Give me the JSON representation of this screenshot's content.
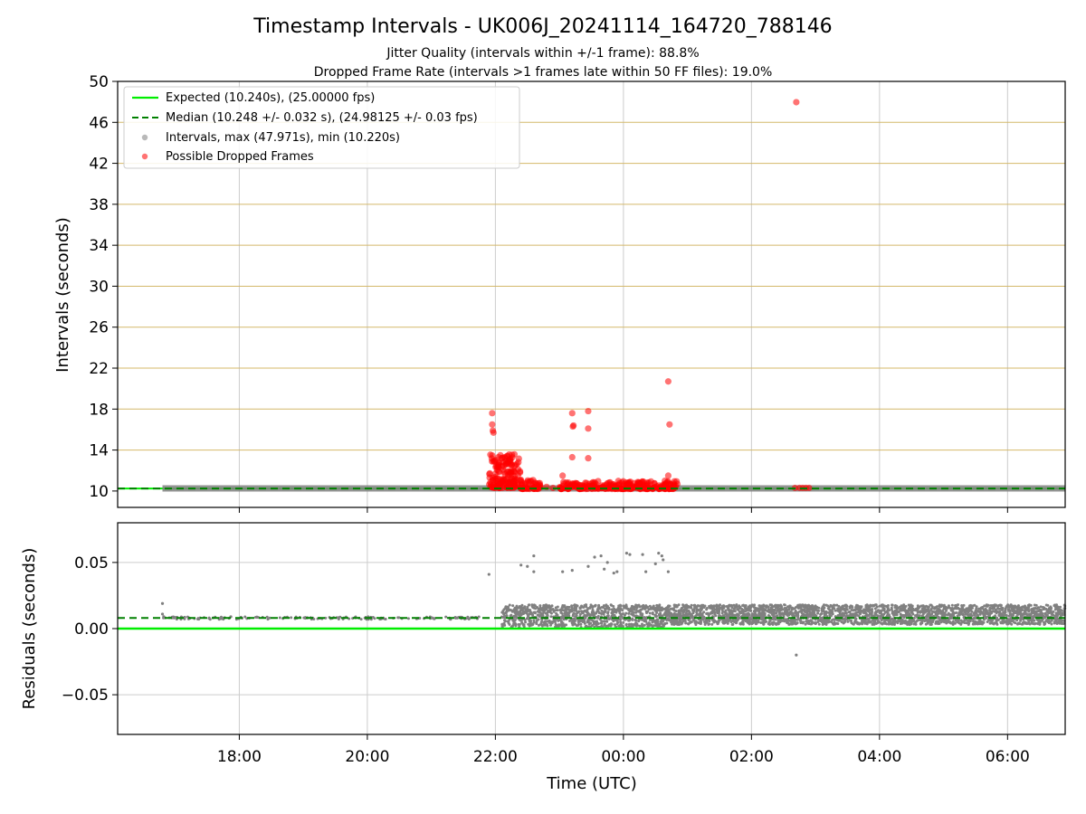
{
  "figure": {
    "title": "Timestamp Intervals - UK006J_20241114_164720_788146",
    "subtitle_line1": "Jitter Quality (intervals within +/-1 frame): 88.8%",
    "subtitle_line2": "Dropped Frame Rate (intervals >1 frames late within 50 FF files): 19.0%"
  },
  "colors": {
    "expected": "#00ee00",
    "median": "#008000",
    "intervals": "#808080",
    "dropped": "#ff0000",
    "ff_grid": "#d4b86a",
    "grid": "#cccccc"
  },
  "chart_data": [
    {
      "type": "scatter",
      "panel": "top",
      "xlabel": "",
      "ylabel": "Intervals (seconds)",
      "x_unit": "hours relative to 00:00 UTC (2024-11-15)",
      "xlim": [
        -7.9,
        6.9
      ],
      "ylim": [
        8.4,
        50
      ],
      "yticks": [
        10,
        14,
        18,
        22,
        26,
        30,
        34,
        38,
        42,
        46,
        50
      ],
      "xticks": [
        -6,
        -4,
        -2,
        0,
        2,
        4,
        6
      ],
      "xtick_labels": [
        "18:00",
        "20:00",
        "22:00",
        "00:00",
        "02:00",
        "04:00",
        "06:00"
      ],
      "grid": true,
      "legend_placement": "upper-left",
      "expected_interval": 10.24,
      "median_interval": 10.248,
      "ff_gridlines": [
        14,
        18,
        22,
        26,
        30,
        34,
        38,
        42,
        46
      ],
      "series": [
        {
          "name": "Expected (10.240s), (25.00000 fps)",
          "kind": "line",
          "color": "#00ee00",
          "style": "solid",
          "y": 10.24
        },
        {
          "name": "Median (10.248 +/- 0.032 s), (24.98125 +/- 0.03 fps)",
          "kind": "line",
          "color": "#008000",
          "style": "dashed",
          "y": 10.248
        },
        {
          "name": "Intervals, max (47.971s), min (10.220s)",
          "kind": "band",
          "color": "#808080",
          "x_range": [
            -7.2,
            6.9
          ],
          "y": 10.25,
          "max": 47.971,
          "min": 10.22
        },
        {
          "name": "Possible Dropped Frames",
          "kind": "scatter",
          "color": "#ff0000",
          "points": [
            [
              -2.05,
              17.6
            ],
            [
              -2.05,
              16.5
            ],
            [
              -2.04,
              15.9
            ],
            [
              -2.03,
              15.7
            ],
            [
              -1.85,
              13.2
            ],
            [
              -1.82,
              13.4
            ],
            [
              -1.8,
              12.9
            ],
            [
              -1.78,
              12.6
            ],
            [
              -1.9,
              12.4
            ],
            [
              -1.95,
              11.9
            ],
            [
              -2.0,
              11.7
            ],
            [
              -1.88,
              12.1
            ],
            [
              -1.7,
              11.2
            ],
            [
              -1.6,
              11.0
            ],
            [
              -1.5,
              10.9
            ],
            [
              -1.4,
              10.7
            ],
            [
              -1.3,
              10.5
            ],
            [
              -1.2,
              10.4
            ],
            [
              -1.1,
              10.3
            ],
            [
              -0.8,
              17.6
            ],
            [
              -0.78,
              16.4
            ],
            [
              -0.79,
              16.3
            ],
            [
              -0.8,
              13.3
            ],
            [
              -0.95,
              11.5
            ],
            [
              -0.55,
              17.8
            ],
            [
              -0.55,
              16.1
            ],
            [
              -0.55,
              13.2
            ],
            [
              0.7,
              20.7
            ],
            [
              0.72,
              16.5
            ],
            [
              0.7,
              11.5
            ],
            [
              2.7,
              47.971
            ],
            [
              2.68,
              10.3
            ],
            [
              2.75,
              10.3
            ],
            [
              2.8,
              10.3
            ],
            [
              2.85,
              10.3
            ],
            [
              2.9,
              10.3
            ]
          ],
          "clusters": [
            {
              "x_range": [
                -2.1,
                -1.6
              ],
              "y_range": [
                10.3,
                13.6
              ],
              "n": 160
            },
            {
              "x_range": [
                -1.6,
                -1.3
              ],
              "y_range": [
                10.2,
                11.1
              ],
              "n": 45
            },
            {
              "x_range": [
                -1.0,
                0.85
              ],
              "y_range": [
                10.2,
                11.0
              ],
              "n": 260
            }
          ]
        }
      ]
    },
    {
      "type": "scatter",
      "panel": "bottom",
      "xlabel": "Time (UTC)",
      "ylabel": "Residuals (seconds)",
      "xlim": [
        -7.9,
        6.9
      ],
      "ylim": [
        -0.08,
        0.08
      ],
      "yticks": [
        -0.05,
        0.0,
        0.05
      ],
      "ytick_labels": [
        "−0.05",
        "0.00",
        "0.05"
      ],
      "xticks": [
        -6,
        -4,
        -2,
        0,
        2,
        4,
        6
      ],
      "xtick_labels": [
        "18:00",
        "20:00",
        "22:00",
        "00:00",
        "02:00",
        "04:00",
        "06:00"
      ],
      "grid": true,
      "series": [
        {
          "name": "",
          "kind": "line",
          "color": "#00ee00",
          "style": "solid",
          "y": 0.0
        },
        {
          "name": "",
          "kind": "line",
          "color": "#008000",
          "style": "dashed",
          "y": 0.008
        },
        {
          "name": "",
          "kind": "scatter",
          "color": "#808080",
          "points": [
            [
              -7.2,
              0.019
            ],
            [
              -7.2,
              0.011
            ],
            [
              -7.18,
              0.009
            ],
            [
              -2.1,
              0.041
            ],
            [
              -1.6,
              0.048
            ],
            [
              -1.4,
              0.055
            ],
            [
              -1.4,
              0.043
            ],
            [
              -1.5,
              0.047
            ],
            [
              -0.95,
              0.043
            ],
            [
              -0.8,
              0.044
            ],
            [
              -0.55,
              0.047
            ],
            [
              -0.45,
              0.054
            ],
            [
              -0.35,
              0.055
            ],
            [
              -0.3,
              0.045
            ],
            [
              -0.25,
              0.05
            ],
            [
              -0.15,
              0.042
            ],
            [
              -0.1,
              0.043
            ],
            [
              0.05,
              0.057
            ],
            [
              0.1,
              0.056
            ],
            [
              0.3,
              0.056
            ],
            [
              0.35,
              0.043
            ],
            [
              0.5,
              0.049
            ],
            [
              0.55,
              0.057
            ],
            [
              0.6,
              0.055
            ],
            [
              0.62,
              0.052
            ],
            [
              0.7,
              0.043
            ],
            [
              2.7,
              -0.02
            ]
          ],
          "bands": [
            {
              "x_range": [
                -7.2,
                -2.1
              ],
              "y_range": [
                0.007,
                0.009
              ],
              "n": 170
            },
            {
              "x_range": [
                -1.9,
                0.65
              ],
              "y_range": [
                0.001,
                0.018
              ],
              "n": 900
            },
            {
              "x_range": [
                0.65,
                6.9
              ],
              "y_range": [
                0.003,
                0.018
              ],
              "n": 2600
            }
          ]
        }
      ]
    }
  ]
}
